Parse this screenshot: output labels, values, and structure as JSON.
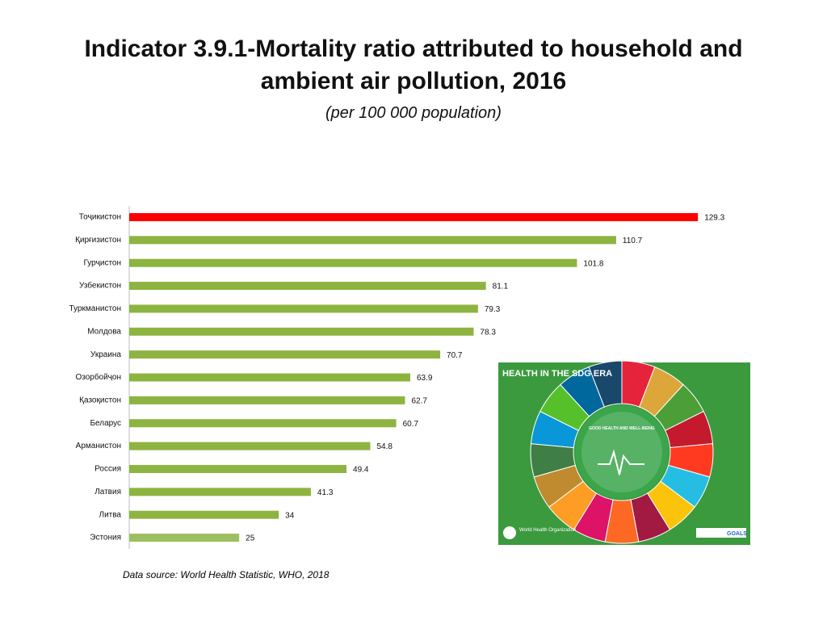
{
  "chart_data": {
    "type": "barh",
    "title": "Indicator 3.9.1-Mortality ratio attributed to household and ambient air pollution, 2016",
    "subtitle": "(per 100 000 population)",
    "source": "Data source: World Health Statistic, WHO, 2018",
    "categories": [
      "Тоҷикистон",
      "Қирғизистон",
      "Гурҷистон",
      "Узбекистон",
      "Туркманистон",
      "Молдова",
      "Украина",
      "Озорбойҷон",
      "Қазоқистон",
      "Беларус",
      "Арманистон",
      "Россия",
      "Латвия",
      "Литва",
      "Эстония"
    ],
    "values": [
      129.3,
      110.7,
      101.8,
      81.1,
      79.3,
      78.3,
      70.7,
      63.9,
      62.7,
      60.7,
      54.8,
      49.4,
      41.3,
      34,
      25
    ],
    "colors": [
      "#ff0000",
      "#8db440",
      "#8db440",
      "#8db440",
      "#8db440",
      "#8db440",
      "#8db440",
      "#8db440",
      "#8db440",
      "#8db440",
      "#8db440",
      "#8db440",
      "#8db440",
      "#8db440",
      "#9dbf62"
    ],
    "xlim": [
      0,
      130
    ]
  },
  "inset": {
    "title": "HEALTH IN THE SDG ERA",
    "center": "GOOD HEALTH AND WELL-BEING",
    "logo": "World Health Organization",
    "goals": "GOALS"
  }
}
